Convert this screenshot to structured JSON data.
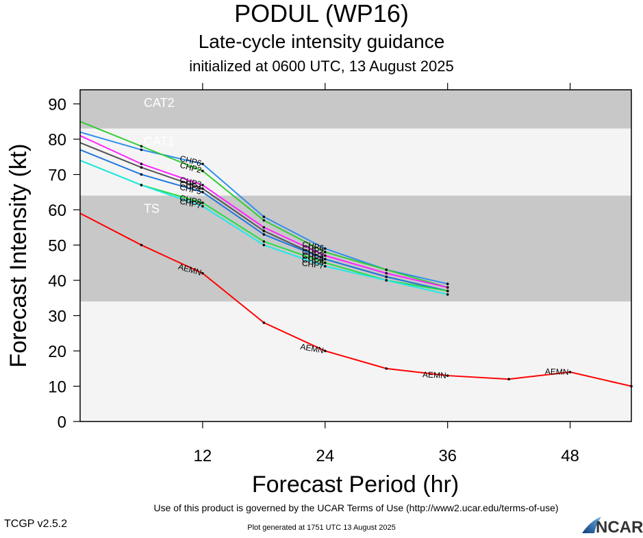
{
  "header": {
    "title": "PODUL (WP16)",
    "subtitle": "Late-cycle intensity guidance",
    "init": "initialized at 0600 UTC, 13 August 2025"
  },
  "footer": {
    "terms": "Use of this product is governed by the UCAR Terms of Use (http://www2.ucar.edu/terms-of-use)",
    "generated": "Plot generated at 1751 UTC   13 August 2025",
    "version": "TCGP v2.5.2",
    "logo_text": "NCAR"
  },
  "chart_data": {
    "type": "line",
    "xlabel": "Forecast Period (hr)",
    "ylabel": "Forecast Intensity (kt)",
    "xlim": [
      0,
      54
    ],
    "ylim": [
      0,
      94
    ],
    "xticks": [
      12,
      24,
      36,
      48
    ],
    "yticks": [
      0,
      10,
      20,
      30,
      40,
      50,
      60,
      70,
      80,
      90
    ],
    "bands": [
      {
        "label": "CAT2",
        "from": 83,
        "to": 94,
        "color": "#c8c8c8"
      },
      {
        "label": "CAT1",
        "from": 64,
        "to": 83,
        "color": "#f4f4f4"
      },
      {
        "label": "TS",
        "from": 34,
        "to": 64,
        "color": "#c8c8c8"
      },
      {
        "label": "",
        "from": 0,
        "to": 34,
        "color": "#f4f4f4"
      }
    ],
    "series": [
      {
        "name": "AEMN",
        "color": "#ff0000",
        "x": [
          0,
          6,
          12,
          18,
          24,
          30,
          36,
          42,
          48,
          54
        ],
        "y": [
          59,
          50,
          42,
          28,
          20,
          15,
          13,
          12,
          14,
          10
        ]
      },
      {
        "name": "CHP6",
        "color": "#2e8ef0",
        "x": [
          0,
          6,
          12,
          18,
          24,
          30,
          36
        ],
        "y": [
          82,
          77,
          73,
          58,
          49,
          43,
          39
        ]
      },
      {
        "name": "CHP2",
        "color": "#33cc33",
        "x": [
          0,
          6,
          12,
          18,
          24,
          30,
          36
        ],
        "y": [
          85,
          78,
          71,
          57,
          48,
          43,
          38
        ]
      },
      {
        "name": "CHP3",
        "color": "#ff22ff",
        "x": [
          0,
          6,
          12,
          18,
          24,
          30,
          36
        ],
        "y": [
          81,
          73,
          67,
          55,
          47,
          42,
          38
        ]
      },
      {
        "name": "CHP4",
        "color": "#555555",
        "x": [
          0,
          6,
          12,
          18,
          24,
          30,
          36
        ],
        "y": [
          79,
          72,
          66,
          54,
          46,
          41,
          37
        ]
      },
      {
        "name": "CHP5",
        "color": "#1f77e0",
        "x": [
          0,
          6,
          12,
          18,
          24,
          30,
          36
        ],
        "y": [
          77,
          70,
          65,
          53,
          46,
          41,
          37
        ]
      },
      {
        "name": "CHP8",
        "color": "#22dd44",
        "x": [
          0,
          6,
          12,
          18,
          24,
          30,
          36
        ],
        "y": [
          74,
          67,
          62,
          51,
          45,
          40,
          37
        ]
      },
      {
        "name": "CHP7",
        "color": "#22e8e8",
        "x": [
          0,
          6,
          12,
          18,
          24,
          30,
          36
        ],
        "y": [
          74,
          67,
          61,
          50,
          44,
          40,
          36
        ]
      }
    ]
  }
}
